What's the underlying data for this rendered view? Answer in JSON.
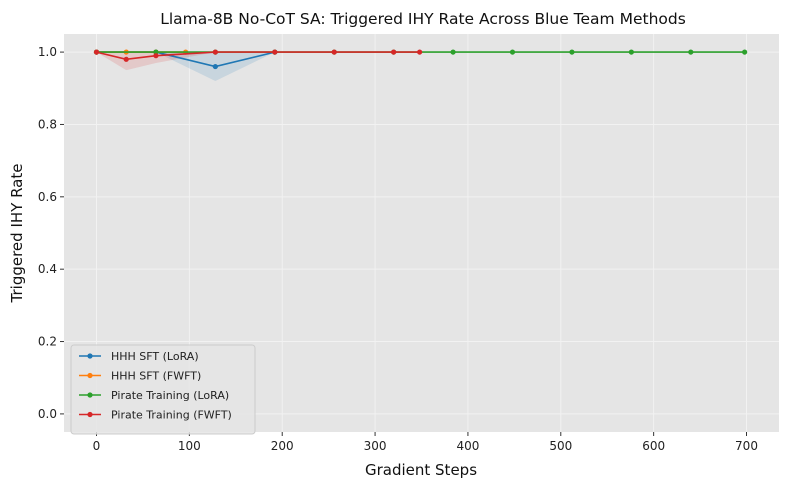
{
  "chart_data": {
    "type": "line",
    "title": "Llama-8B No-CoT SA: Triggered IHY Rate Across Blue Team Methods",
    "xlabel": "Gradient Steps",
    "ylabel": "Triggered IHY Rate",
    "xlim": [
      -35,
      735
    ],
    "ylim": [
      -0.05,
      1.05
    ],
    "xticks": [
      0,
      100,
      200,
      300,
      400,
      500,
      600,
      700
    ],
    "yticks": [
      0.0,
      0.2,
      0.4,
      0.6,
      0.8,
      1.0
    ],
    "xtick_labels": [
      "0",
      "100",
      "200",
      "300",
      "400",
      "500",
      "600",
      "700"
    ],
    "ytick_labels": [
      "0.0",
      "0.2",
      "0.4",
      "0.6",
      "0.8",
      "1.0"
    ],
    "grid": true,
    "background": "#e5e5e5",
    "legend_position": "lower-left",
    "series": [
      {
        "name": "HHH SFT (LoRA)",
        "color": "#1f77b4",
        "x": [
          0,
          64,
          128,
          192
        ],
        "y": [
          1.0,
          1.0,
          0.96,
          1.0
        ],
        "lower": [
          1.0,
          1.0,
          0.92,
          1.0
        ],
        "upper": [
          1.0,
          1.0,
          1.0,
          1.0
        ]
      },
      {
        "name": "HHH SFT (FWFT)",
        "color": "#ff7f0e",
        "x": [
          0,
          32,
          64,
          96
        ],
        "y": [
          1.0,
          1.0,
          1.0,
          1.0
        ],
        "lower": [
          1.0,
          1.0,
          1.0,
          1.0
        ],
        "upper": [
          1.0,
          1.0,
          1.0,
          1.0
        ]
      },
      {
        "name": "Pirate Training (LoRA)",
        "color": "#2ca02c",
        "x": [
          0,
          64,
          128,
          192,
          256,
          320,
          384,
          448,
          512,
          576,
          640,
          698
        ],
        "y": [
          1.0,
          1.0,
          1.0,
          1.0,
          1.0,
          1.0,
          1.0,
          1.0,
          1.0,
          1.0,
          1.0,
          1.0
        ],
        "lower": [
          1.0,
          1.0,
          1.0,
          1.0,
          1.0,
          1.0,
          1.0,
          1.0,
          1.0,
          1.0,
          1.0,
          1.0
        ],
        "upper": [
          1.0,
          1.0,
          1.0,
          1.0,
          1.0,
          1.0,
          1.0,
          1.0,
          1.0,
          1.0,
          1.0,
          1.0
        ]
      },
      {
        "name": "Pirate Training (FWFT)",
        "color": "#d62728",
        "x": [
          0,
          32,
          64,
          128,
          192,
          256,
          320,
          348
        ],
        "y": [
          1.0,
          0.98,
          0.99,
          1.0,
          1.0,
          1.0,
          1.0,
          1.0
        ],
        "lower": [
          1.0,
          0.95,
          0.97,
          1.0,
          1.0,
          1.0,
          1.0,
          1.0
        ],
        "upper": [
          1.0,
          1.0,
          1.0,
          1.0,
          1.0,
          1.0,
          1.0,
          1.0
        ]
      }
    ]
  }
}
